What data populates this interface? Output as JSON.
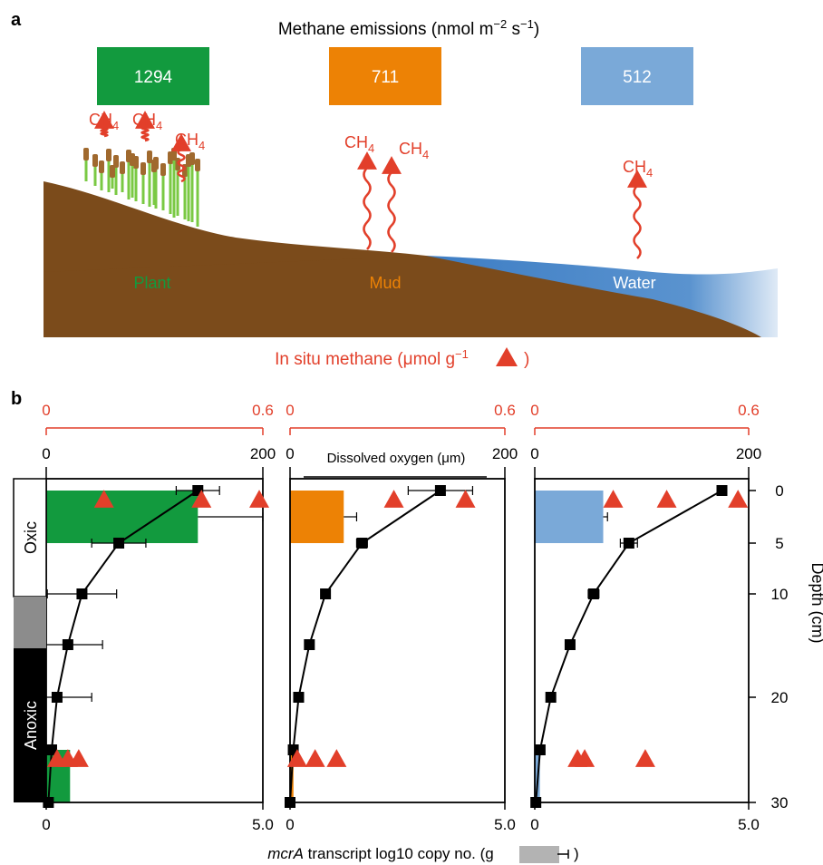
{
  "panel_a": {
    "label": "a",
    "emissions_title": "Methane emissions (nmol m",
    "emissions_title_exp1": "−2",
    "emissions_title_mid": " s",
    "emissions_title_exp2": "−1",
    "emissions_title_end": ")",
    "emission_boxes": [
      {
        "site": "Plant",
        "value": "1294",
        "color": "#129a3e"
      },
      {
        "site": "Mud",
        "value": "711",
        "color": "#ed8205"
      },
      {
        "site": "Water",
        "value": "512",
        "color": "#7aa9d8"
      }
    ],
    "ch4_label": "CH",
    "ch4_sub": "4",
    "site_labels": {
      "plant": "Plant",
      "mud": "Mud",
      "water": "Water"
    },
    "site_colors": {
      "plant": "#129a3e",
      "mud": "#ed8205",
      "water": "#ffffff"
    },
    "insitu_title": "In situ methane (μmol g",
    "insitu_exp": "−1",
    "insitu_end": ")",
    "colors": {
      "soil": "#7b4b1b",
      "water": "#4a86c6",
      "methane": "#e23f2a",
      "reed_stem": "#7ac943",
      "reed_head": "#a0692e"
    }
  },
  "panel_b": {
    "label": "b",
    "top_axis_methane": {
      "min_label": "0",
      "max_label": "0.6",
      "color": "#e23f2a"
    },
    "top_axis_oxygen": {
      "min_label": "0",
      "max_label": "200"
    },
    "oxygen_title": "Dissolved oxygen (μm)",
    "bottom_axis": {
      "min_label": "0",
      "max_label": "5.0"
    },
    "bottom_title": "mcrA",
    "bottom_title_rest": " transcript log10 copy no. (g",
    "bottom_title_end": ")",
    "depth_title": "Depth (cm)",
    "depth_ticks": [
      "0",
      "5",
      "10",
      "20",
      "30"
    ],
    "zones": {
      "oxic": "Oxic",
      "anoxic": "Anoxic"
    }
  },
  "chart_data": [
    {
      "type": "bar",
      "site": "Plant",
      "color": "#129a3e",
      "mcrA_bars": [
        {
          "depth_range": "0-5",
          "value": 3.5,
          "err": 1.5
        },
        {
          "depth_range": "25-30",
          "value": 0.55,
          "err": 0.0
        }
      ],
      "oxygen_profile": [
        {
          "depth": 0,
          "value": 140,
          "err": 20
        },
        {
          "depth": 5,
          "value": 67,
          "err": 25
        },
        {
          "depth": 10,
          "value": 33,
          "err": 32
        },
        {
          "depth": 15,
          "value": 20,
          "err": 32
        },
        {
          "depth": 20,
          "value": 10,
          "err": 32
        },
        {
          "depth": 25,
          "value": 5,
          "err": 0
        },
        {
          "depth": 30,
          "value": 2,
          "err": 4
        }
      ],
      "methane_points": [
        {
          "depth": 0,
          "value": 0.16
        },
        {
          "depth": 0,
          "value": 0.43
        },
        {
          "depth": 0,
          "value": 0.59
        },
        {
          "depth": 25,
          "value": 0.03
        },
        {
          "depth": 25,
          "value": 0.06
        },
        {
          "depth": 25,
          "value": 0.09
        }
      ]
    },
    {
      "type": "bar",
      "site": "Mud",
      "color": "#ed8205",
      "mcrA_bars": [
        {
          "depth_range": "0-5",
          "value": 1.25,
          "err": 0.3
        },
        {
          "depth_range": "25-30",
          "value": 0.08,
          "err": 0.0
        }
      ],
      "oxygen_profile": [
        {
          "depth": 0,
          "value": 140,
          "err": 30
        },
        {
          "depth": 5,
          "value": 67,
          "err": 5
        },
        {
          "depth": 10,
          "value": 33,
          "err": 0
        },
        {
          "depth": 15,
          "value": 18,
          "err": 0
        },
        {
          "depth": 20,
          "value": 8,
          "err": 0
        },
        {
          "depth": 25,
          "value": 3,
          "err": 0
        },
        {
          "depth": 30,
          "value": 0,
          "err": 0
        }
      ],
      "methane_points": [
        {
          "depth": 0,
          "value": 0.29
        },
        {
          "depth": 0,
          "value": 0.49
        },
        {
          "depth": 25,
          "value": 0.02
        },
        {
          "depth": 25,
          "value": 0.07
        },
        {
          "depth": 25,
          "value": 0.13
        }
      ]
    },
    {
      "type": "bar",
      "site": "Water",
      "color": "#7aa9d8",
      "mcrA_bars": [
        {
          "depth_range": "0-5",
          "value": 1.6,
          "err": 0.1
        },
        {
          "depth_range": "25-30",
          "value": 0.12,
          "err": 0.0
        }
      ],
      "oxygen_profile": [
        {
          "depth": 0,
          "value": 175,
          "err": 0
        },
        {
          "depth": 5,
          "value": 88,
          "err": 8
        },
        {
          "depth": 10,
          "value": 55,
          "err": 5
        },
        {
          "depth": 15,
          "value": 33,
          "err": 4
        },
        {
          "depth": 20,
          "value": 15,
          "err": 0
        },
        {
          "depth": 25,
          "value": 5,
          "err": 0
        },
        {
          "depth": 30,
          "value": 1,
          "err": 0
        }
      ],
      "methane_points": [
        {
          "depth": 0,
          "value": 0.22
        },
        {
          "depth": 0,
          "value": 0.37
        },
        {
          "depth": 0,
          "value": 0.57
        },
        {
          "depth": 25,
          "value": 0.12
        },
        {
          "depth": 25,
          "value": 0.14
        },
        {
          "depth": 25,
          "value": 0.31
        }
      ]
    }
  ]
}
